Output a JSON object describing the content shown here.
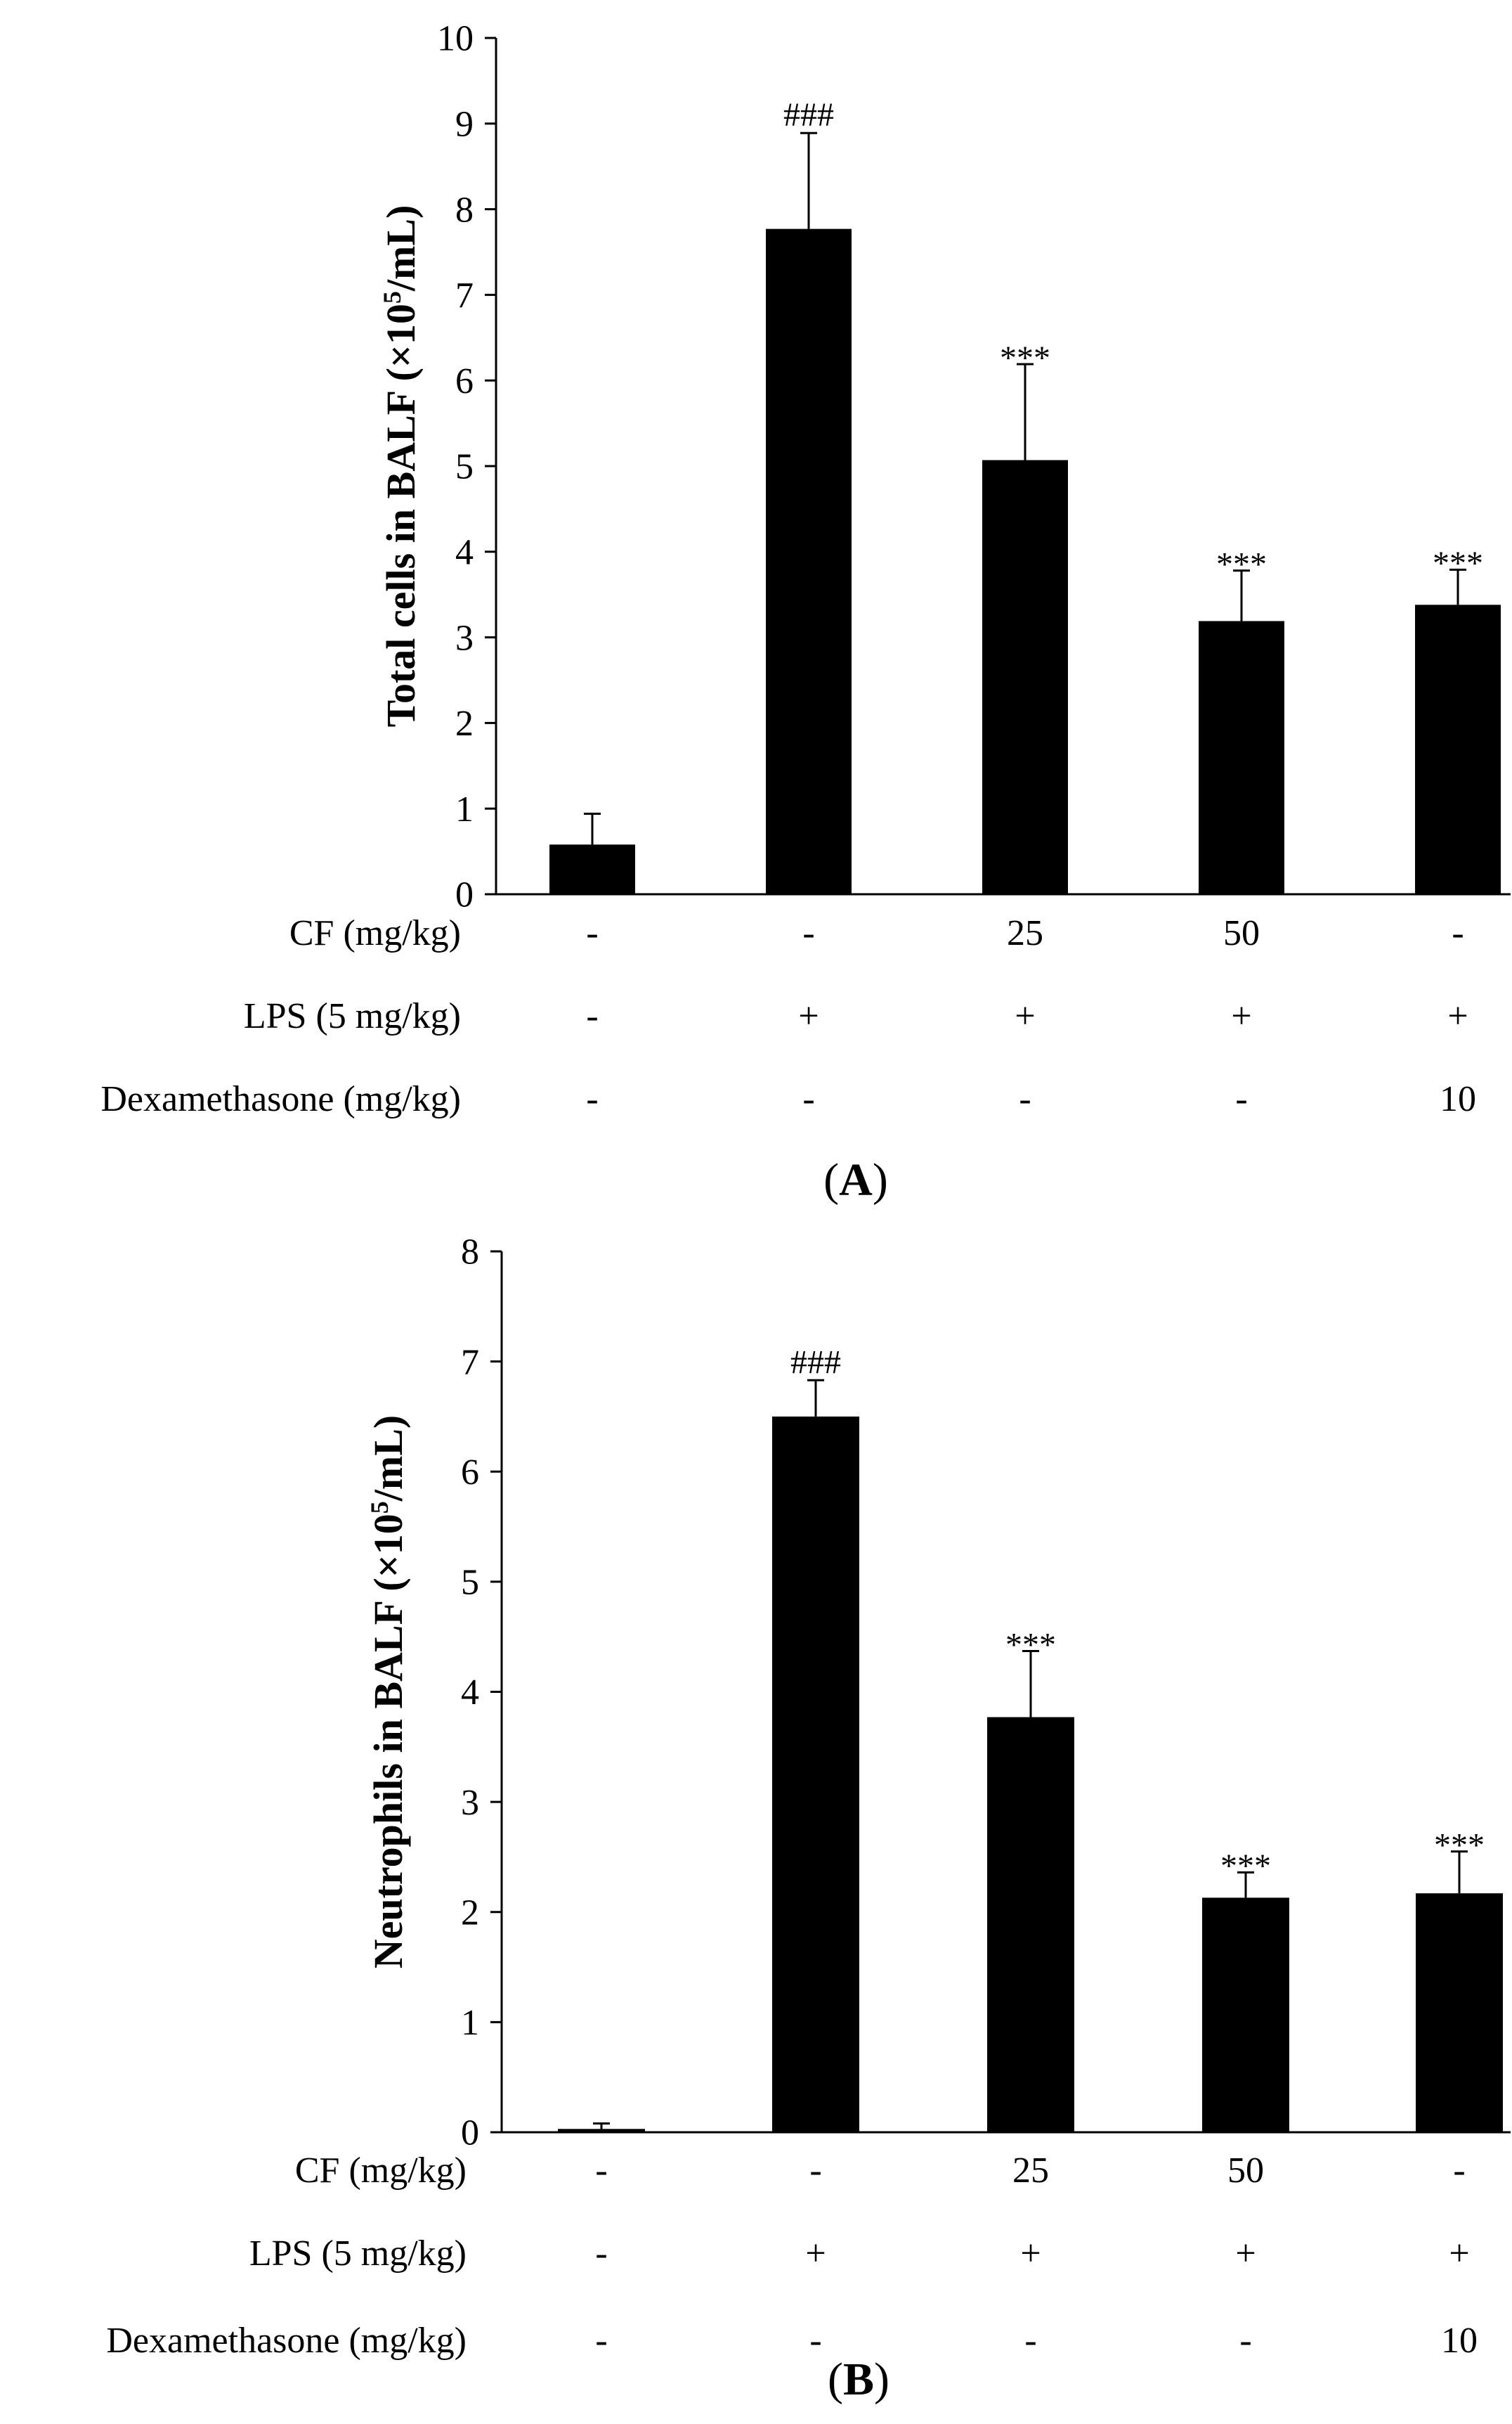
{
  "chart_data": [
    {
      "type": "bar",
      "panel_label": "A",
      "title": "",
      "xlabel": "",
      "ylabel_main": "Total cells in BALF (×10",
      "ylabel_sup": "5",
      "ylabel_end": "/mL)",
      "ylim": [
        0,
        10
      ],
      "yticks": [
        "0",
        "1",
        "2",
        "3",
        "4",
        "5",
        "6",
        "7",
        "8",
        "9",
        "10"
      ],
      "values": [
        0.58,
        7.77,
        5.07,
        3.19,
        3.38
      ],
      "errors": [
        0.36,
        1.12,
        1.12,
        0.59,
        0.41
      ],
      "significance": [
        "",
        "###",
        "***",
        "***",
        "***"
      ],
      "bar_color": "#000000",
      "treatment_rows": [
        {
          "label": "CF (mg/kg)",
          "values": [
            "-",
            "-",
            "25",
            "50",
            "-"
          ]
        },
        {
          "label": "LPS (5 mg/kg)",
          "values": [
            "-",
            "+",
            "+",
            "+",
            "+"
          ]
        },
        {
          "label": "Dexamethasone (mg/kg)",
          "values": [
            "-",
            "-",
            "-",
            "-",
            "10"
          ]
        }
      ]
    },
    {
      "type": "bar",
      "panel_label": "B",
      "title": "",
      "xlabel": "",
      "ylabel_main": "Neutrophils in BALF (×10",
      "ylabel_sup": "5",
      "ylabel_end": "/mL)",
      "ylim": [
        0,
        8
      ],
      "yticks": [
        "0",
        "1",
        "2",
        "3",
        "4",
        "5",
        "6",
        "7",
        "8"
      ],
      "values": [
        0.03,
        6.5,
        3.77,
        2.13,
        2.17
      ],
      "errors": [
        0.05,
        0.33,
        0.6,
        0.23,
        0.38
      ],
      "significance": [
        "",
        "###",
        "***",
        "***",
        "***"
      ],
      "bar_color": "#000000",
      "treatment_rows": [
        {
          "label": "CF (mg/kg)",
          "values": [
            "-",
            "-",
            "25",
            "50",
            "-"
          ]
        },
        {
          "label": "LPS (5 mg/kg)",
          "values": [
            "-",
            "+",
            "+",
            "+",
            "+"
          ]
        },
        {
          "label": "Dexamethasone (mg/kg)",
          "values": [
            "-",
            "-",
            "-",
            "-",
            "10"
          ]
        }
      ]
    }
  ]
}
